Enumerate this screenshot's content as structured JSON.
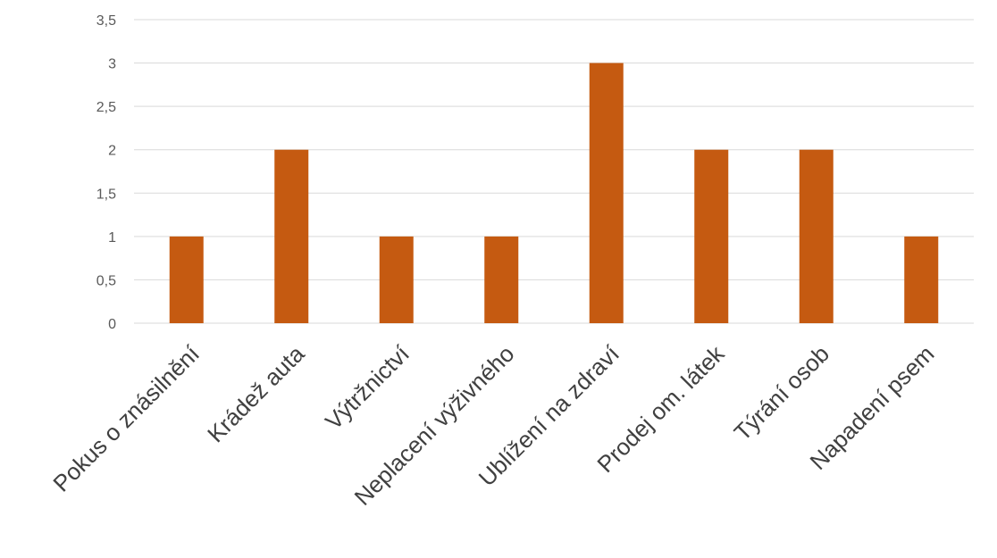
{
  "chart_data": {
    "type": "bar",
    "title": "",
    "xlabel": "",
    "ylabel": "",
    "categories": [
      "Pokus o znásilnění",
      "Krádež auta",
      "Výtržnictví",
      "Neplacení výživného",
      "Ublížení na zdraví",
      "Prodej om. látek",
      "Týrání osob",
      "Napadení psem"
    ],
    "values": [
      1,
      2,
      1,
      1,
      3,
      2,
      2,
      1
    ],
    "ylim": [
      0,
      3.5
    ],
    "yticks": [
      "0",
      "0,5",
      "1",
      "1,5",
      "2",
      "2,5",
      "3",
      "3,5"
    ],
    "grid": true,
    "legend": "none",
    "bar_color": "#c55a11"
  }
}
